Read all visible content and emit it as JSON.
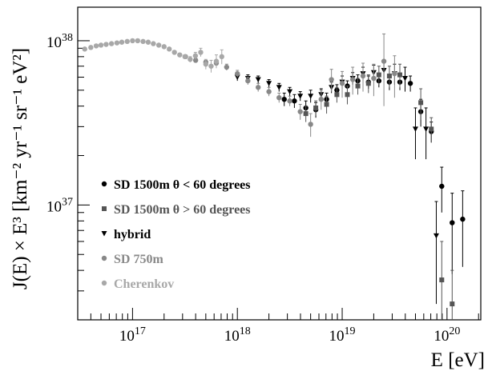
{
  "chart_data": {
    "type": "scatter",
    "xlabel": "E [eV]",
    "ylabel": "J(E) × E³ [km⁻² yr⁻¹ sr⁻¹ eV²]",
    "xscale": "log",
    "yscale": "log",
    "xlim": [
      3e+16,
      2.1e+20
    ],
    "ylim": [
      2e+36,
      1.6e+38
    ],
    "x_ticks": [
      {
        "label": "10",
        "exp": "17",
        "value": 1e+17
      },
      {
        "label": "10",
        "exp": "18",
        "value": 1e+18
      },
      {
        "label": "10",
        "exp": "19",
        "value": 1e+19
      },
      {
        "label": "10",
        "exp": "20",
        "value": 1e+20
      }
    ],
    "y_ticks": [
      {
        "label": "10",
        "exp": "37",
        "value": 1e+37
      },
      {
        "label": "10",
        "exp": "38",
        "value": 1e+38
      }
    ],
    "legend_placement": "bottom-left",
    "series": [
      {
        "name": "SD 1500m  θ < 60 degrees",
        "marker": "circle",
        "color": "#000000",
        "points": [
          [
            2.8e+18,
            4.4e+37,
            4e+36
          ],
          [
            3.5e+18,
            4.3e+37,
            4e+36
          ],
          [
            4.5e+18,
            3.9e+37,
            4e+36
          ],
          [
            5.6e+18,
            3.8e+37,
            4e+36
          ],
          [
            7.1e+18,
            4.4e+37,
            4e+36
          ],
          [
            8.9e+18,
            5e+37,
            4e+36
          ],
          [
            1.12e+19,
            5.3e+37,
            4e+36
          ],
          [
            1.41e+19,
            5.7e+37,
            5e+36
          ],
          [
            1.78e+19,
            5.6e+37,
            5e+36
          ],
          [
            2.24e+19,
            5.7e+37,
            5e+36
          ],
          [
            2.82e+19,
            5.6e+37,
            6e+36
          ],
          [
            3.55e+19,
            5.6e+37,
            6e+36
          ],
          [
            4.47e+19,
            5.5e+37,
            6e+36
          ],
          [
            5.62e+19,
            3.7e+37,
            7e+36
          ],
          [
            7.08e+19,
            2.8e+37,
            4e+36
          ],
          [
            8.91e+19,
            1.3e+37,
            4e+36
          ],
          [
            1.12e+20,
            7.8e+36,
            4e+36
          ],
          [
            1.41e+20,
            8.2e+36,
            4e+36
          ]
        ]
      },
      {
        "name": "SD 1500m  θ > 60 degrees",
        "marker": "square",
        "color": "#555555",
        "points": [
          [
            4.5e+18,
            3.6e+37,
            4e+36
          ],
          [
            5.6e+18,
            3.9e+37,
            4e+36
          ],
          [
            7.1e+18,
            4.1e+37,
            5e+36
          ],
          [
            8.9e+18,
            4.7e+37,
            5e+36
          ],
          [
            1.12e+19,
            4.7e+37,
            6e+36
          ],
          [
            1.41e+19,
            5.3e+37,
            6e+36
          ],
          [
            1.78e+19,
            5.5e+37,
            7e+36
          ],
          [
            2.24e+19,
            6.2e+37,
            8e+36
          ],
          [
            2.82e+19,
            6.1e+37,
            9e+36
          ],
          [
            3.55e+19,
            6.2e+37,
            1e+37
          ],
          [
            5.62e+19,
            4.2e+37,
            9e+36
          ],
          [
            7.08e+19,
            2.9e+37,
            5e+36
          ],
          [
            8.91e+19,
            3.5e+36,
            2.5e+36
          ],
          [
            1.12e+20,
            2.5e+36,
            1.5e+36
          ]
        ]
      },
      {
        "name": "hybrid",
        "marker": "triangle-down",
        "color": "#000000",
        "points": [
          [
            1e+18,
            6e+37,
            3e+36
          ],
          [
            1.26e+18,
            5.9e+37,
            3e+36
          ],
          [
            1.58e+18,
            5.8e+37,
            3e+36
          ],
          [
            2e+18,
            5.5e+37,
            3e+36
          ],
          [
            2.5e+18,
            5.2e+37,
            3e+36
          ],
          [
            3.16e+18,
            4.9e+37,
            3e+36
          ],
          [
            3.98e+18,
            4.6e+37,
            3e+36
          ],
          [
            5e+18,
            4.6e+37,
            4e+36
          ],
          [
            6.3e+18,
            4.7e+37,
            4e+36
          ],
          [
            7.9e+18,
            5.2e+37,
            4e+36
          ],
          [
            1e+19,
            5.6e+37,
            5e+36
          ],
          [
            1.26e+19,
            5.9e+37,
            5e+36
          ],
          [
            1.58e+19,
            6.3e+37,
            6e+36
          ],
          [
            2e+19,
            6.4e+37,
            7e+36
          ],
          [
            2.5e+19,
            6.6e+37,
            8e+36
          ],
          [
            3.16e+19,
            6.3e+37,
            9e+36
          ],
          [
            3.98e+19,
            5.9e+37,
            1e+37
          ],
          [
            5e+19,
            2.9e+37,
            1e+37
          ],
          [
            6.3e+19,
            2.9e+37,
            1e+37
          ],
          [
            7.9e+19,
            6.5e+36,
            4e+36
          ]
        ]
      },
      {
        "name": "SD 750m",
        "marker": "circle",
        "color": "#888888",
        "points": [
          [
            3.2e+17,
            8e+37,
            2e+36
          ],
          [
            4e+17,
            7.6e+37,
            2e+36
          ],
          [
            5e+17,
            7.4e+37,
            2e+36
          ],
          [
            6.3e+17,
            7.3e+37,
            2e+36
          ],
          [
            7.9e+17,
            6.9e+37,
            3e+36
          ],
          [
            1e+18,
            6.3e+37,
            3e+36
          ],
          [
            1.26e+18,
            5.7e+37,
            3e+36
          ],
          [
            1.58e+18,
            5.2e+37,
            3e+36
          ],
          [
            2e+18,
            4.9e+37,
            3e+36
          ],
          [
            2.5e+18,
            4.5e+37,
            3e+36
          ],
          [
            3.16e+18,
            4.3e+37,
            3e+36
          ],
          [
            3.98e+18,
            3.7e+37,
            4e+36
          ],
          [
            5e+18,
            3.1e+37,
            5e+36
          ],
          [
            6.3e+18,
            4.4e+37,
            6e+36
          ],
          [
            7.9e+18,
            5.8e+37,
            9e+36
          ],
          [
            1e+19,
            5.5e+37,
            1e+37
          ],
          [
            1.26e+19,
            5.8e+37,
            1.1e+37
          ],
          [
            1.58e+19,
            6.1e+37,
            1.2e+37
          ],
          [
            2e+19,
            5.9e+37,
            1.3e+37
          ],
          [
            2.5e+19,
            7.5e+37,
            3.5e+37
          ],
          [
            3.16e+19,
            6.3e+37,
            1.8e+37
          ]
        ]
      },
      {
        "name": "Cherenkov",
        "marker": "circle",
        "color": "#a8a8a8",
        "points": [
          [
            3.5e+16,
            8.9e+37,
            5e+35
          ],
          [
            4e+16,
            9.1e+37,
            5e+35
          ],
          [
            4.5e+16,
            9.3e+37,
            5e+35
          ],
          [
            5e+16,
            9.4e+37,
            5e+35
          ],
          [
            5.6e+16,
            9.5e+37,
            5e+35
          ],
          [
            6.3e+16,
            9.6e+37,
            5e+35
          ],
          [
            7.1e+16,
            9.7e+37,
            5e+35
          ],
          [
            7.9e+16,
            9.8e+37,
            5e+35
          ],
          [
            8.9e+16,
            9.9e+37,
            5e+35
          ],
          [
            1e+17,
            1e+38,
            5e+35
          ],
          [
            1.12e+17,
            1e+38,
            5e+35
          ],
          [
            1.26e+17,
            9.9e+37,
            5e+35
          ],
          [
            1.41e+17,
            9.8e+37,
            1e+36
          ],
          [
            1.58e+17,
            9.6e+37,
            1e+36
          ],
          [
            1.78e+17,
            9.4e+37,
            1e+36
          ],
          [
            2e+17,
            9.2e+37,
            1e+36
          ],
          [
            2.24e+17,
            8.9e+37,
            1e+36
          ],
          [
            2.51e+17,
            8.5e+37,
            1.5e+36
          ],
          [
            2.82e+17,
            8.2e+37,
            2e+36
          ],
          [
            3.16e+17,
            8e+37,
            2e+36
          ],
          [
            3.55e+17,
            7.7e+37,
            3e+36
          ],
          [
            3.98e+17,
            8.1e+37,
            4e+36
          ],
          [
            4.47e+17,
            8.5e+37,
            5e+36
          ],
          [
            5e+17,
            7.2e+37,
            5e+36
          ],
          [
            5.62e+17,
            7e+37,
            6e+36
          ],
          [
            6.3e+17,
            7.5e+37,
            7e+36
          ],
          [
            7.1e+17,
            8e+37,
            8e+36
          ]
        ]
      }
    ]
  }
}
